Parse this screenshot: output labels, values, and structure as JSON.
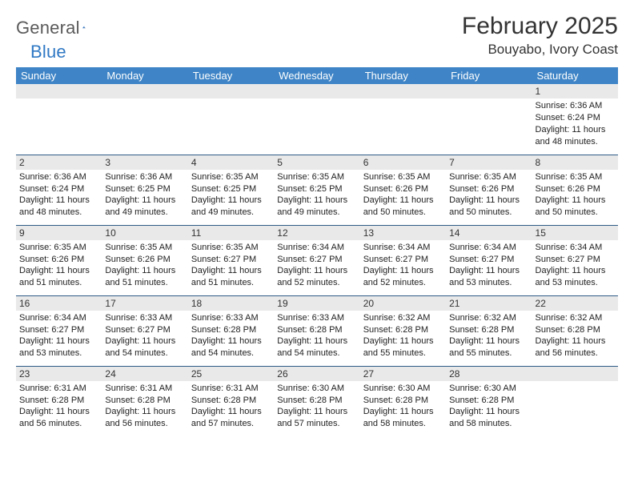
{
  "logo": {
    "word1": "General",
    "word2": "Blue"
  },
  "title": "February 2025",
  "location": "Bouyabo, Ivory Coast",
  "colors": {
    "header_bg": "#3e84c6",
    "header_text": "#ffffff",
    "daynum_bg": "#e9e9e9",
    "row_border": "#2f5b86",
    "logo_gray": "#5a5a5a",
    "logo_blue": "#2f78c4"
  },
  "typography": {
    "title_fontsize": 30,
    "location_fontsize": 17,
    "header_fontsize": 13,
    "cell_fontsize": 11
  },
  "weekdays": [
    "Sunday",
    "Monday",
    "Tuesday",
    "Wednesday",
    "Thursday",
    "Friday",
    "Saturday"
  ],
  "weeks": [
    [
      null,
      null,
      null,
      null,
      null,
      null,
      {
        "n": "1",
        "sr": "Sunrise: 6:36 AM",
        "ss": "Sunset: 6:24 PM",
        "dl": "Daylight: 11 hours and 48 minutes."
      }
    ],
    [
      {
        "n": "2",
        "sr": "Sunrise: 6:36 AM",
        "ss": "Sunset: 6:24 PM",
        "dl": "Daylight: 11 hours and 48 minutes."
      },
      {
        "n": "3",
        "sr": "Sunrise: 6:36 AM",
        "ss": "Sunset: 6:25 PM",
        "dl": "Daylight: 11 hours and 49 minutes."
      },
      {
        "n": "4",
        "sr": "Sunrise: 6:35 AM",
        "ss": "Sunset: 6:25 PM",
        "dl": "Daylight: 11 hours and 49 minutes."
      },
      {
        "n": "5",
        "sr": "Sunrise: 6:35 AM",
        "ss": "Sunset: 6:25 PM",
        "dl": "Daylight: 11 hours and 49 minutes."
      },
      {
        "n": "6",
        "sr": "Sunrise: 6:35 AM",
        "ss": "Sunset: 6:26 PM",
        "dl": "Daylight: 11 hours and 50 minutes."
      },
      {
        "n": "7",
        "sr": "Sunrise: 6:35 AM",
        "ss": "Sunset: 6:26 PM",
        "dl": "Daylight: 11 hours and 50 minutes."
      },
      {
        "n": "8",
        "sr": "Sunrise: 6:35 AM",
        "ss": "Sunset: 6:26 PM",
        "dl": "Daylight: 11 hours and 50 minutes."
      }
    ],
    [
      {
        "n": "9",
        "sr": "Sunrise: 6:35 AM",
        "ss": "Sunset: 6:26 PM",
        "dl": "Daylight: 11 hours and 51 minutes."
      },
      {
        "n": "10",
        "sr": "Sunrise: 6:35 AM",
        "ss": "Sunset: 6:26 PM",
        "dl": "Daylight: 11 hours and 51 minutes."
      },
      {
        "n": "11",
        "sr": "Sunrise: 6:35 AM",
        "ss": "Sunset: 6:27 PM",
        "dl": "Daylight: 11 hours and 51 minutes."
      },
      {
        "n": "12",
        "sr": "Sunrise: 6:34 AM",
        "ss": "Sunset: 6:27 PM",
        "dl": "Daylight: 11 hours and 52 minutes."
      },
      {
        "n": "13",
        "sr": "Sunrise: 6:34 AM",
        "ss": "Sunset: 6:27 PM",
        "dl": "Daylight: 11 hours and 52 minutes."
      },
      {
        "n": "14",
        "sr": "Sunrise: 6:34 AM",
        "ss": "Sunset: 6:27 PM",
        "dl": "Daylight: 11 hours and 53 minutes."
      },
      {
        "n": "15",
        "sr": "Sunrise: 6:34 AM",
        "ss": "Sunset: 6:27 PM",
        "dl": "Daylight: 11 hours and 53 minutes."
      }
    ],
    [
      {
        "n": "16",
        "sr": "Sunrise: 6:34 AM",
        "ss": "Sunset: 6:27 PM",
        "dl": "Daylight: 11 hours and 53 minutes."
      },
      {
        "n": "17",
        "sr": "Sunrise: 6:33 AM",
        "ss": "Sunset: 6:27 PM",
        "dl": "Daylight: 11 hours and 54 minutes."
      },
      {
        "n": "18",
        "sr": "Sunrise: 6:33 AM",
        "ss": "Sunset: 6:28 PM",
        "dl": "Daylight: 11 hours and 54 minutes."
      },
      {
        "n": "19",
        "sr": "Sunrise: 6:33 AM",
        "ss": "Sunset: 6:28 PM",
        "dl": "Daylight: 11 hours and 54 minutes."
      },
      {
        "n": "20",
        "sr": "Sunrise: 6:32 AM",
        "ss": "Sunset: 6:28 PM",
        "dl": "Daylight: 11 hours and 55 minutes."
      },
      {
        "n": "21",
        "sr": "Sunrise: 6:32 AM",
        "ss": "Sunset: 6:28 PM",
        "dl": "Daylight: 11 hours and 55 minutes."
      },
      {
        "n": "22",
        "sr": "Sunrise: 6:32 AM",
        "ss": "Sunset: 6:28 PM",
        "dl": "Daylight: 11 hours and 56 minutes."
      }
    ],
    [
      {
        "n": "23",
        "sr": "Sunrise: 6:31 AM",
        "ss": "Sunset: 6:28 PM",
        "dl": "Daylight: 11 hours and 56 minutes."
      },
      {
        "n": "24",
        "sr": "Sunrise: 6:31 AM",
        "ss": "Sunset: 6:28 PM",
        "dl": "Daylight: 11 hours and 56 minutes."
      },
      {
        "n": "25",
        "sr": "Sunrise: 6:31 AM",
        "ss": "Sunset: 6:28 PM",
        "dl": "Daylight: 11 hours and 57 minutes."
      },
      {
        "n": "26",
        "sr": "Sunrise: 6:30 AM",
        "ss": "Sunset: 6:28 PM",
        "dl": "Daylight: 11 hours and 57 minutes."
      },
      {
        "n": "27",
        "sr": "Sunrise: 6:30 AM",
        "ss": "Sunset: 6:28 PM",
        "dl": "Daylight: 11 hours and 58 minutes."
      },
      {
        "n": "28",
        "sr": "Sunrise: 6:30 AM",
        "ss": "Sunset: 6:28 PM",
        "dl": "Daylight: 11 hours and 58 minutes."
      },
      null
    ]
  ]
}
